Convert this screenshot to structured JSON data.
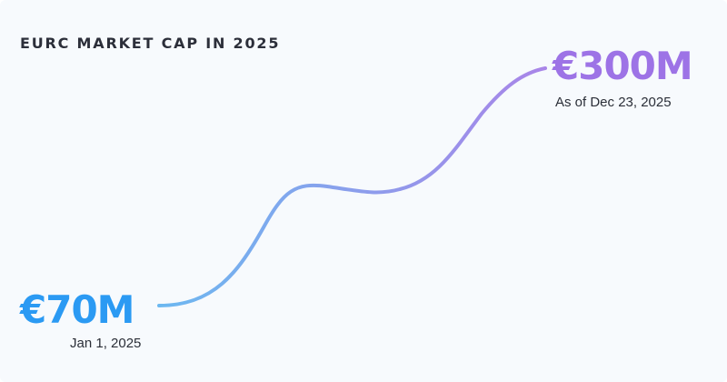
{
  "title": "EURC MARKET CAP IN 2025",
  "start": {
    "value": "€70M",
    "date": "Jan 1, 2025",
    "color": "#2b9af3"
  },
  "end": {
    "value": "€300M",
    "date": "As of Dec 23, 2025",
    "color": "#9d73e6"
  },
  "chart_data": {
    "type": "line",
    "title": "EURC MARKET CAP IN 2025",
    "xlabel": "",
    "ylabel": "",
    "grid": false,
    "x": [
      "Jan 1, 2025",
      "Dec 23, 2025"
    ],
    "series": [
      {
        "values": [
          70,
          300
        ]
      }
    ],
    "annotations": [
      {
        "x": "Jan 1, 2025",
        "label": "€70M"
      },
      {
        "x": "Dec 23, 2025",
        "label": "€300M"
      }
    ],
    "gradient": [
      "#6cb8f0",
      "#a985e8"
    ]
  }
}
